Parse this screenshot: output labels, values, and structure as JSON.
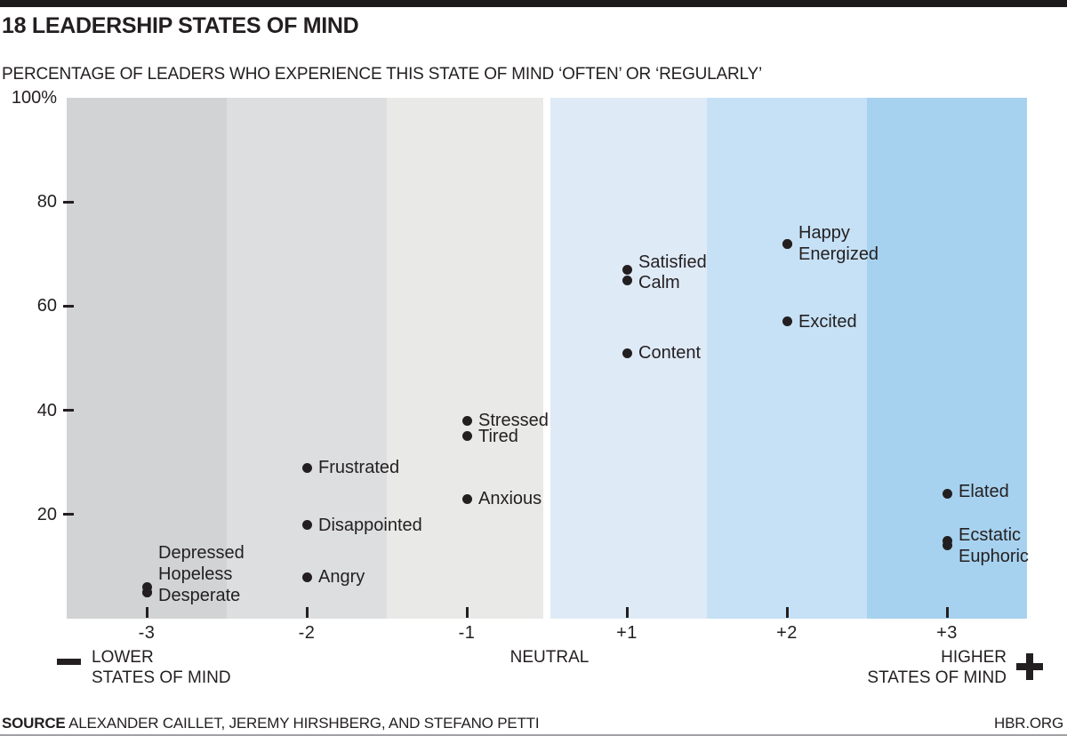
{
  "page": {
    "title": "18 LEADERSHIP STATES OF MIND",
    "subtitle": "PERCENTAGE OF LEADERS WHO EXPERIENCE THIS STATE OF MIND ‘OFTEN’ OR ‘REGULARLY’",
    "source_label": "SOURCE",
    "source_text": "ALEXANDER CAILLET, JEREMY HIRSHBERG, AND STEFANO PETTI",
    "site": "HBR.ORG"
  },
  "axis_legend": {
    "lower": {
      "icon": "minus-icon",
      "line1": "LOWER",
      "line2": "STATES OF MIND"
    },
    "neutral": "NEUTRAL",
    "higher": {
      "icon": "plus-icon",
      "line1": "HIGHER",
      "line2": "STATES OF MIND"
    }
  },
  "chart_data": {
    "type": "scatter",
    "title": "18 Leadership States of Mind",
    "ylabel": "Percentage of leaders who experience this state of mind often or regularly",
    "ylim": [
      0,
      100
    ],
    "grid": false,
    "x_categories": [
      "-3",
      "-2",
      "-1",
      "+1",
      "+2",
      "+3"
    ],
    "band_colors": [
      "#d1d3d4",
      "#dcdee0",
      "#e9eae8",
      "#dfeaf7",
      "#c6e1f6",
      "#a7d2ef"
    ],
    "y_ticks": [
      {
        "label": "100%",
        "value": 100
      },
      {
        "label": "80",
        "value": 80
      },
      {
        "label": "60",
        "value": 60
      },
      {
        "label": "40",
        "value": 40
      },
      {
        "label": "20",
        "value": 20
      }
    ],
    "points": [
      {
        "state": "Depressed",
        "x": "-3",
        "pct": 6
      },
      {
        "state": "Hopeless",
        "x": "-3",
        "pct": 5
      },
      {
        "state": "Desperate",
        "x": "-3",
        "pct": 5
      },
      {
        "state": "Frustrated",
        "x": "-2",
        "pct": 29
      },
      {
        "state": "Disappointed",
        "x": "-2",
        "pct": 18
      },
      {
        "state": "Angry",
        "x": "-2",
        "pct": 8
      },
      {
        "state": "Stressed",
        "x": "-1",
        "pct": 38
      },
      {
        "state": "Tired",
        "x": "-1",
        "pct": 35
      },
      {
        "state": "Anxious",
        "x": "-1",
        "pct": 23
      },
      {
        "state": "Satisfied",
        "x": "+1",
        "pct": 67
      },
      {
        "state": "Calm",
        "x": "+1",
        "pct": 65
      },
      {
        "state": "Content",
        "x": "+1",
        "pct": 51
      },
      {
        "state": "Happy",
        "x": "+2",
        "pct": 72
      },
      {
        "state": "Energized",
        "x": "+2",
        "pct": 72
      },
      {
        "state": "Excited",
        "x": "+2",
        "pct": 57
      },
      {
        "state": "Elated",
        "x": "+3",
        "pct": 24
      },
      {
        "state": "Ecstatic",
        "x": "+3",
        "pct": 15
      },
      {
        "state": "Euphoric",
        "x": "+3",
        "pct": 14
      }
    ]
  }
}
